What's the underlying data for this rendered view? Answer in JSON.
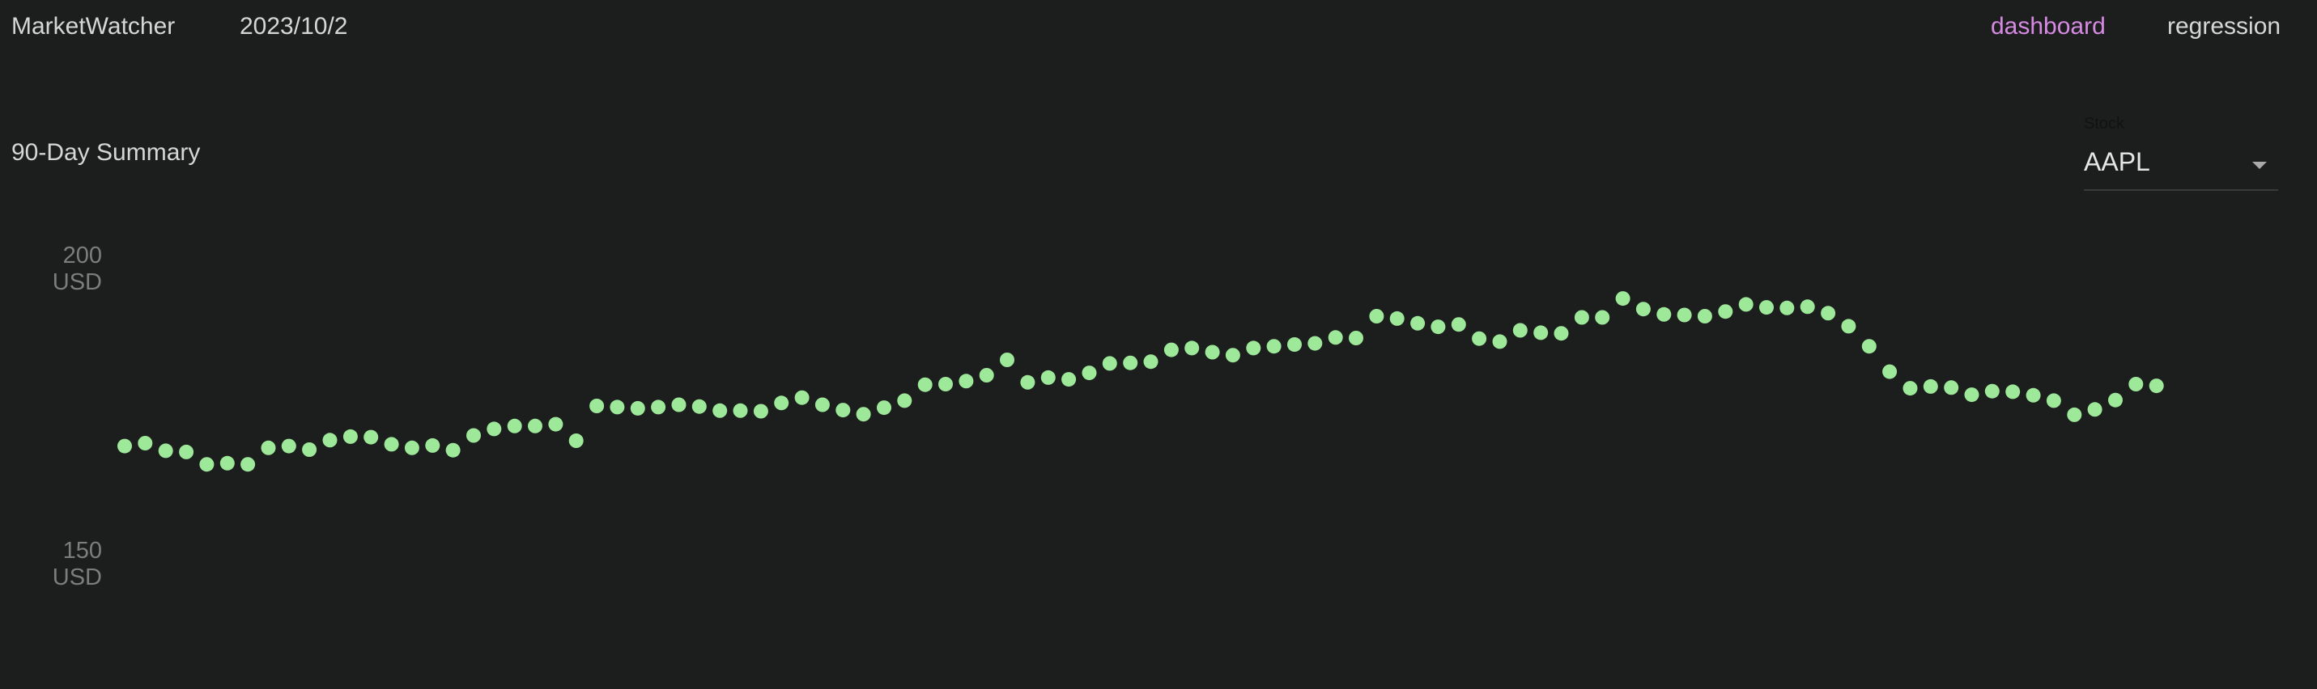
{
  "header": {
    "app_title": "MarketWatcher",
    "date": "2023/10/2",
    "nav": {
      "dashboard": "dashboard",
      "regression": "regression"
    },
    "active_color": "#d68ae3"
  },
  "summary": {
    "title": "90-Day Summary"
  },
  "stock_select": {
    "label": "Stock",
    "value": "AAPL",
    "icon": "chevron-down-icon"
  },
  "chart_data": {
    "type": "scatter",
    "title": "",
    "xlabel": "",
    "ylabel": "",
    "ylim": [
      150,
      200
    ],
    "yticks": [
      {
        "value": 200,
        "value_label": "200",
        "unit": "USD"
      },
      {
        "value": 150,
        "value_label": "150",
        "unit": "USD"
      }
    ],
    "color": "#9ee89a",
    "grid": false,
    "values": [
      168.0,
      168.5,
      167.2,
      167.0,
      164.9,
      165.1,
      164.9,
      167.7,
      168.0,
      167.4,
      169.0,
      169.6,
      169.5,
      168.3,
      167.7,
      168.1,
      167.3,
      169.8,
      170.9,
      171.4,
      171.4,
      171.7,
      168.9,
      174.8,
      174.6,
      174.4,
      174.6,
      175.0,
      174.7,
      174.0,
      174.0,
      173.9,
      175.3,
      176.2,
      175.0,
      174.1,
      173.4,
      174.5,
      175.7,
      178.4,
      178.5,
      179.0,
      180.0,
      182.6,
      178.8,
      179.6,
      179.3,
      180.4,
      182.0,
      182.1,
      182.3,
      184.3,
      184.6,
      183.9,
      183.4,
      184.6,
      184.9,
      185.2,
      185.4,
      186.4,
      186.3,
      190.0,
      189.6,
      188.8,
      188.2,
      188.6,
      186.2,
      185.7,
      187.6,
      187.2,
      187.1,
      189.8,
      189.8,
      193.0,
      191.2,
      190.3,
      190.2,
      190.0,
      190.8,
      192.0,
      191.5,
      191.4,
      191.6,
      190.5,
      188.3,
      184.9,
      180.6,
      177.8,
      178.1,
      177.9,
      176.7,
      177.3,
      177.2,
      176.6,
      175.7,
      173.3,
      174.2,
      175.8,
      178.5,
      178.2
    ]
  }
}
